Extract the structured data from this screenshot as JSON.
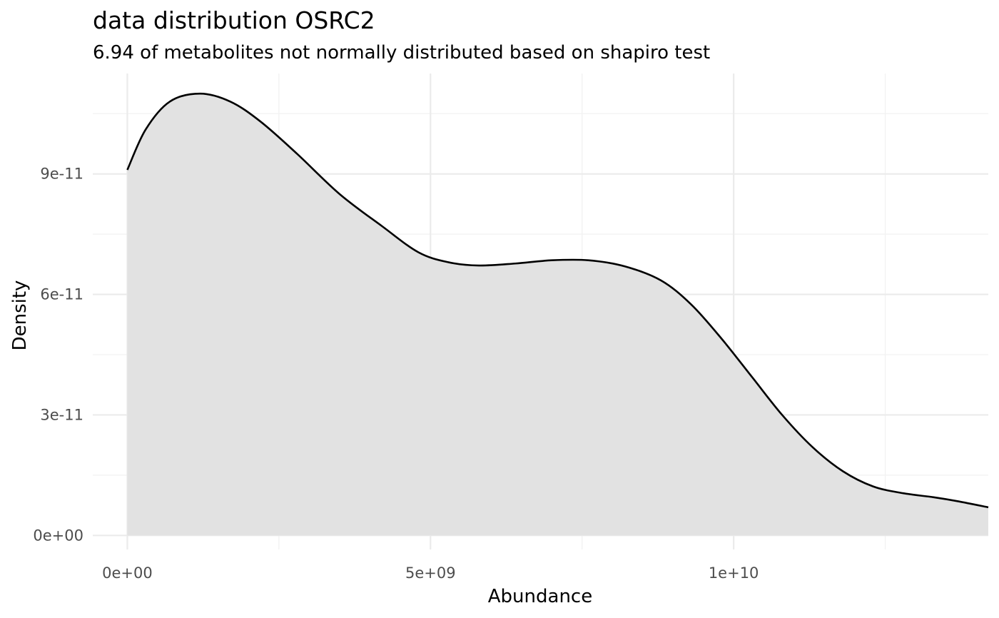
{
  "chart_data": {
    "type": "area",
    "title": "data distribution  OSRC2",
    "subtitle": "6.94  of metabolites not normally distributed based on shapiro test",
    "xlabel": "Abundance",
    "ylabel": "Density",
    "xlim": [
      -570000000,
      14200000000
    ],
    "ylim": [
      -3.5e-12,
      1.15e-10
    ],
    "x_ticks": [
      0,
      5000000000,
      10000000000
    ],
    "x_tick_labels": [
      "0e+00",
      "5e+09",
      "1e+10"
    ],
    "x_minor_ticks": [
      2500000000,
      7500000000,
      12500000000
    ],
    "y_ticks": [
      0,
      3e-11,
      6e-11,
      9e-11
    ],
    "y_tick_labels": [
      "0e+00",
      "3e-11",
      "6e-11",
      "9e-11"
    ],
    "y_minor_ticks": [
      1.5e-11,
      4.5e-11,
      7.5e-11,
      1.05e-10
    ],
    "grid": true,
    "legend": "none",
    "series": [
      {
        "x": [
          0,
          300000000,
          700000000,
          1200000000,
          1700000000,
          2200000000,
          2800000000,
          3500000000,
          4200000000,
          4800000000,
          5300000000,
          5800000000,
          6400000000,
          7000000000,
          7600000000,
          8200000000,
          8800000000,
          9300000000,
          9800000000,
          10300000000,
          10800000000,
          11300000000,
          11800000000,
          12300000000,
          12800000000,
          13300000000,
          13700000000,
          14200000000
        ],
        "y": [
          9.1e-11,
          1.01e-10,
          1.08e-10,
          1.1e-10,
          1.08e-10,
          1.03e-10,
          9.5e-11,
          8.5e-11,
          7.7e-11,
          7.05e-11,
          6.8e-11,
          6.72e-11,
          6.77e-11,
          6.85e-11,
          6.85e-11,
          6.7e-11,
          6.35e-11,
          5.75e-11,
          4.9e-11,
          3.95e-11,
          3e-11,
          2.2e-11,
          1.6e-11,
          1.22e-11,
          1.05e-11,
          9.5e-12,
          8.5e-12,
          7e-12
        ]
      }
    ],
    "colors": {
      "fill": "#e2e2e2",
      "line": "#000000",
      "grid": "#ebebeb"
    }
  }
}
